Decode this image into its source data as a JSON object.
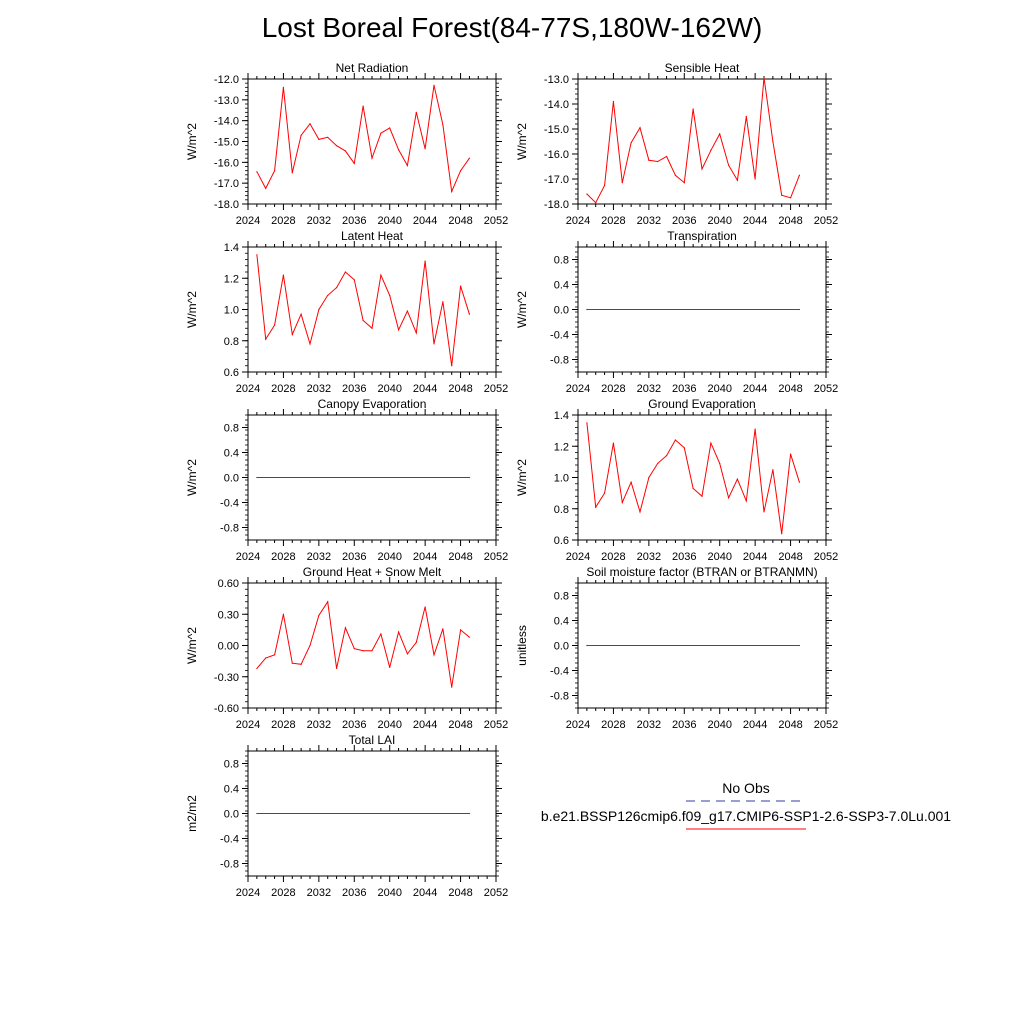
{
  "title": "Lost Boreal Forest(84-77S,180W-162W)",
  "legend": {
    "entries": [
      {
        "label": "No Obs",
        "color": "#3a3aa8",
        "dash": true
      },
      {
        "label": "b.e21.BSSP126cmip6.f09_g17.CMIP6-SSP1-2.6-SSP3-7.0Lu.001",
        "color": "#ff0000",
        "dash": false
      }
    ]
  },
  "chart_data": [
    {
      "type": "line",
      "title": "Net Radiation",
      "ylabel": "W/m^2",
      "xlabel": "",
      "xlim": [
        2024,
        2052
      ],
      "ylim": [
        -18,
        -12
      ],
      "xticks": [
        "2024",
        "2028",
        "2032",
        "2036",
        "2040",
        "2044",
        "2048",
        "2052"
      ],
      "yticks": [
        "-18.0",
        "-17.0",
        "-16.0",
        "-15.0",
        "-14.0",
        "-13.0",
        "-12.0"
      ],
      "color": "#ff0000",
      "x": [
        2025,
        2026,
        2027,
        2028,
        2029,
        2030,
        2031,
        2032,
        2033,
        2034,
        2035,
        2036,
        2037,
        2038,
        2039,
        2040,
        2041,
        2042,
        2043,
        2044,
        2045,
        2046,
        2047,
        2048,
        2049
      ],
      "y": [
        -16.45,
        -17.25,
        -16.4,
        -12.4,
        -16.5,
        -14.7,
        -14.15,
        -14.9,
        -14.8,
        -15.2,
        -15.45,
        -16.05,
        -13.3,
        -15.8,
        -14.6,
        -14.35,
        -15.4,
        -16.15,
        -13.6,
        -15.35,
        -12.3,
        -14.2,
        -17.4,
        -16.4,
        -15.8
      ]
    },
    {
      "type": "line",
      "title": "Sensible Heat",
      "ylabel": "W/m^2",
      "xlabel": "",
      "xlim": [
        2024,
        2052
      ],
      "ylim": [
        -18,
        -13
      ],
      "xticks": [
        "2024",
        "2028",
        "2032",
        "2036",
        "2040",
        "2044",
        "2048",
        "2052"
      ],
      "yticks": [
        "-18.0",
        "-17.0",
        "-16.0",
        "-15.0",
        "-14.0",
        "-13.0"
      ],
      "color": "#ff0000",
      "x": [
        2025,
        2026,
        2027,
        2028,
        2029,
        2030,
        2031,
        2032,
        2033,
        2034,
        2035,
        2036,
        2037,
        2038,
        2039,
        2040,
        2041,
        2042,
        2043,
        2044,
        2045,
        2046,
        2047,
        2048,
        2049
      ],
      "y": [
        -17.6,
        -17.95,
        -17.25,
        -13.9,
        -17.15,
        -15.55,
        -14.95,
        -16.25,
        -16.3,
        -16.1,
        -16.85,
        -17.15,
        -14.2,
        -16.6,
        -15.85,
        -15.2,
        -16.45,
        -17.05,
        -14.5,
        -17.0,
        -12.95,
        -15.5,
        -17.65,
        -17.75,
        -16.85
      ]
    },
    {
      "type": "line",
      "title": "Latent Heat",
      "ylabel": "W/m^2",
      "xlabel": "",
      "xlim": [
        2024,
        2052
      ],
      "ylim": [
        0.6,
        1.4
      ],
      "xticks": [
        "2024",
        "2028",
        "2032",
        "2036",
        "2040",
        "2044",
        "2048",
        "2052"
      ],
      "yticks": [
        "0.6",
        "0.8",
        "1.0",
        "1.2",
        "1.4"
      ],
      "color": "#ff0000",
      "x": [
        2025,
        2026,
        2027,
        2028,
        2029,
        2030,
        2031,
        2032,
        2033,
        2034,
        2035,
        2036,
        2037,
        2038,
        2039,
        2040,
        2041,
        2042,
        2043,
        2044,
        2045,
        2046,
        2047,
        2048,
        2049
      ],
      "y": [
        1.35,
        0.81,
        0.9,
        1.22,
        0.84,
        0.97,
        0.78,
        1.0,
        1.09,
        1.14,
        1.24,
        1.19,
        0.93,
        0.88,
        1.22,
        1.09,
        0.87,
        0.99,
        0.85,
        1.31,
        0.78,
        1.05,
        0.64,
        1.15,
        0.97
      ]
    },
    {
      "type": "line",
      "title": "Transpiration",
      "ylabel": "W/m^2",
      "xlabel": "",
      "xlim": [
        2024,
        2052
      ],
      "ylim": [
        -1.0,
        1.0
      ],
      "xticks": [
        "2024",
        "2028",
        "2032",
        "2036",
        "2040",
        "2044",
        "2048",
        "2052"
      ],
      "yticks": [
        "-0.8",
        "-0.4",
        "0.0",
        "0.4",
        "0.8"
      ],
      "color": "#ff0000",
      "x": [
        2025,
        2049
      ],
      "y": [
        0.0,
        0.0
      ]
    },
    {
      "type": "line",
      "title": "Canopy Evaporation",
      "ylabel": "W/m^2",
      "xlabel": "",
      "xlim": [
        2024,
        2052
      ],
      "ylim": [
        -1.0,
        1.0
      ],
      "xticks": [
        "2024",
        "2028",
        "2032",
        "2036",
        "2040",
        "2044",
        "2048",
        "2052"
      ],
      "yticks": [
        "-0.8",
        "-0.4",
        "0.0",
        "0.4",
        "0.8"
      ],
      "color": "#ff0000",
      "x": [
        2025,
        2049
      ],
      "y": [
        0.0,
        0.0
      ]
    },
    {
      "type": "line",
      "title": "Ground Evaporation",
      "ylabel": "W/m^2",
      "xlabel": "",
      "xlim": [
        2024,
        2052
      ],
      "ylim": [
        0.6,
        1.4
      ],
      "xticks": [
        "2024",
        "2028",
        "2032",
        "2036",
        "2040",
        "2044",
        "2048",
        "2052"
      ],
      "yticks": [
        "0.6",
        "0.8",
        "1.0",
        "1.2",
        "1.4"
      ],
      "color": "#ff0000",
      "x": [
        2025,
        2026,
        2027,
        2028,
        2029,
        2030,
        2031,
        2032,
        2033,
        2034,
        2035,
        2036,
        2037,
        2038,
        2039,
        2040,
        2041,
        2042,
        2043,
        2044,
        2045,
        2046,
        2047,
        2048,
        2049
      ],
      "y": [
        1.35,
        0.81,
        0.9,
        1.22,
        0.84,
        0.97,
        0.78,
        1.0,
        1.09,
        1.14,
        1.24,
        1.19,
        0.93,
        0.88,
        1.22,
        1.09,
        0.87,
        0.99,
        0.85,
        1.31,
        0.78,
        1.05,
        0.64,
        1.15,
        0.97
      ]
    },
    {
      "type": "line",
      "title": "Ground Heat + Snow Melt",
      "ylabel": "W/m^2",
      "xlabel": "",
      "xlim": [
        2024,
        2052
      ],
      "ylim": [
        -0.6,
        0.6
      ],
      "xticks": [
        "2024",
        "2028",
        "2032",
        "2036",
        "2040",
        "2044",
        "2048",
        "2052"
      ],
      "yticks": [
        "-0.60",
        "-0.30",
        "0.00",
        "0.30",
        "0.60"
      ],
      "color": "#ff0000",
      "x": [
        2025,
        2026,
        2027,
        2028,
        2029,
        2030,
        2031,
        2032,
        2033,
        2034,
        2035,
        2036,
        2037,
        2038,
        2039,
        2040,
        2041,
        2042,
        2043,
        2044,
        2045,
        2046,
        2047,
        2048,
        2049
      ],
      "y": [
        -0.22,
        -0.12,
        -0.09,
        0.3,
        -0.17,
        -0.18,
        0.0,
        0.29,
        0.42,
        -0.22,
        0.17,
        -0.03,
        -0.05,
        -0.05,
        0.11,
        -0.21,
        0.13,
        -0.08,
        0.03,
        0.37,
        -0.09,
        0.16,
        -0.4,
        0.15,
        0.08
      ]
    },
    {
      "type": "line",
      "title": "Soil moisture factor (BTRAN or BTRANMN)",
      "ylabel": "unitless",
      "xlabel": "",
      "xlim": [
        2024,
        2052
      ],
      "ylim": [
        -1.0,
        1.0
      ],
      "xticks": [
        "2024",
        "2028",
        "2032",
        "2036",
        "2040",
        "2044",
        "2048",
        "2052"
      ],
      "yticks": [
        "-0.8",
        "-0.4",
        "0.0",
        "0.4",
        "0.8"
      ],
      "color": "#ff0000",
      "x": [
        2025,
        2049
      ],
      "y": [
        0.0,
        0.0
      ]
    },
    {
      "type": "line",
      "title": "Total LAI",
      "ylabel": "m2/m2",
      "xlabel": "",
      "xlim": [
        2024,
        2052
      ],
      "ylim": [
        -1.0,
        1.0
      ],
      "xticks": [
        "2024",
        "2028",
        "2032",
        "2036",
        "2040",
        "2044",
        "2048",
        "2052"
      ],
      "yticks": [
        "-0.8",
        "-0.4",
        "0.0",
        "0.4",
        "0.8"
      ],
      "color": "#ff0000",
      "x": [
        2025,
        2049
      ],
      "y": [
        0.0,
        0.0
      ]
    }
  ]
}
